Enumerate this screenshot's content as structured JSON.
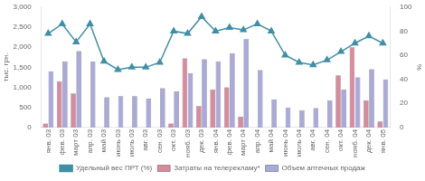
{
  "chart_data": {
    "type": "bar",
    "categories": [
      "янв. 03",
      "фев. 03",
      "март 03",
      "апр. 03",
      "май 03",
      "июнь 03",
      "июль 03",
      "авг. 03",
      "сен. 03",
      "окт. 03",
      "нояб. 03",
      "дек. 03",
      "янв. 04",
      "фев. 04",
      "март 04",
      "апр. 04",
      "май 04",
      "июнь 04",
      "июль 04",
      "авг. 04",
      "сен. 04",
      "окт. 04",
      "нояб. 04",
      "дек. 04",
      "янв. 05"
    ],
    "series": [
      {
        "name": "Затраты на телерекламу*",
        "type": "bar",
        "color": "#d98a9c",
        "values": [
          100,
          1150,
          850,
          null,
          null,
          null,
          null,
          null,
          null,
          100,
          1720,
          530,
          950,
          1000,
          270,
          null,
          null,
          null,
          null,
          null,
          null,
          1300,
          2000,
          680,
          150
        ]
      },
      {
        "name": "Объем аптечных продаж",
        "type": "bar",
        "color": "#a9a9dc",
        "values": [
          1400,
          1650,
          1900,
          1650,
          750,
          780,
          780,
          720,
          980,
          900,
          1350,
          1700,
          1650,
          1850,
          2200,
          1430,
          700,
          500,
          430,
          480,
          680,
          950,
          1250,
          1450,
          1200
        ]
      },
      {
        "name": "Удельный вес ПРТ (%)",
        "type": "line",
        "axis": "y2",
        "color": "#3f8fa6",
        "marker": "triangle",
        "values": [
          78,
          86,
          71,
          86,
          55,
          48,
          50,
          50,
          54,
          80,
          78,
          92,
          80,
          83,
          81,
          86,
          80,
          60,
          54,
          52,
          56,
          63,
          70,
          76,
          70
        ]
      }
    ],
    "y_label": "тыс. грн.",
    "y2_label": "%",
    "ylim": [
      0,
      3000
    ],
    "yticks": [
      0,
      500,
      1000,
      1500,
      2000,
      2500,
      3000
    ],
    "y2lim": [
      0,
      100
    ],
    "y2ticks": [
      0,
      20,
      40,
      60,
      80,
      100
    ],
    "grid": false,
    "legend": "bottom"
  }
}
